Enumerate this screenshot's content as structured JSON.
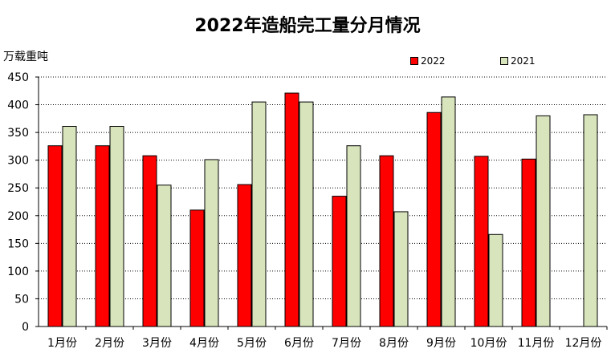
{
  "chart_data": {
    "type": "bar",
    "title": "2022年造船完工量分月情况",
    "ylabel": "万载重吨",
    "ylim": [
      0,
      450
    ],
    "yticks": [
      0,
      50,
      100,
      150,
      200,
      250,
      300,
      350,
      400,
      450
    ],
    "grid": true,
    "legend_position": "top-right",
    "categories": [
      "1月份",
      "2月份",
      "3月份",
      "4月份",
      "5月份",
      "6月份",
      "7月份",
      "8月份",
      "9月份",
      "10月份",
      "11月份",
      "12月份"
    ],
    "series": [
      {
        "name": "2022",
        "color": "#ff0000",
        "values": [
          326,
          326,
          308,
          210,
          256,
          421,
          235,
          308,
          386,
          307,
          302,
          null
        ]
      },
      {
        "name": "2021",
        "color": "#d8e4bc",
        "values": [
          361,
          361,
          255,
          301,
          405,
          405,
          326,
          207,
          414,
          166,
          380,
          382
        ]
      }
    ]
  }
}
